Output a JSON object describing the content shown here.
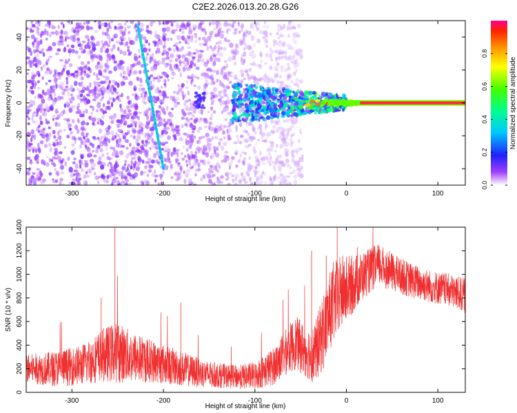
{
  "title": "C2E2.2026.013.20.28.G26",
  "chart_data": [
    {
      "type": "heatmap",
      "xlabel": "Height of straight line (km)",
      "ylabel": "Frequency (Hz)",
      "xlim": [
        -350,
        130
      ],
      "ylim": [
        -50,
        50
      ],
      "xticks": [
        -300,
        -200,
        -100,
        0,
        100
      ],
      "yticks": [
        -40,
        -20,
        0,
        20,
        40
      ],
      "colorbar": {
        "label": "Normalized spectral amplitude",
        "range": [
          0.0,
          1.0
        ],
        "ticks": [
          0.0,
          0.2,
          0.4,
          0.6,
          0.8
        ]
      },
      "features": {
        "noise_region_x": [
          -350,
          -50
        ],
        "diagonal_line": {
          "x": [
            -228,
            -200
          ],
          "y": [
            47,
            -40
          ],
          "amplitude": 0.35
        },
        "carrier_line": {
          "x": [
            15,
            130
          ],
          "y": 0,
          "amplitude": 0.98
        }
      }
    },
    {
      "type": "line",
      "xlabel": "Height of straight line (km)",
      "ylabel": "SNR (10 * v/v)",
      "xlim": [
        -350,
        130
      ],
      "ylim": [
        0,
        1400
      ],
      "xticks": [
        -300,
        -200,
        -100,
        0,
        100
      ],
      "yticks": [
        0,
        200,
        400,
        600,
        800,
        1000,
        1200,
        1400
      ],
      "series": [
        {
          "color": "#f03030",
          "x": [
            -350,
            -320,
            -290,
            -265,
            -250,
            -235,
            -210,
            -180,
            -150,
            -120,
            -100,
            -80,
            -65,
            -55,
            -45,
            -35,
            -25,
            -15,
            -5,
            5,
            20,
            35,
            50,
            70,
            90,
            110,
            130
          ],
          "y": [
            200,
            200,
            230,
            320,
            340,
            300,
            260,
            200,
            150,
            130,
            140,
            220,
            350,
            420,
            350,
            320,
            520,
            750,
            850,
            900,
            1000,
            1080,
            1020,
            950,
            900,
            870,
            820
          ],
          "spread": [
            120,
            150,
            170,
            230,
            260,
            220,
            180,
            150,
            110,
            100,
            120,
            160,
            200,
            230,
            220,
            250,
            330,
            350,
            320,
            260,
            200,
            180,
            160,
            150,
            140,
            140,
            150
          ]
        }
      ]
    }
  ]
}
